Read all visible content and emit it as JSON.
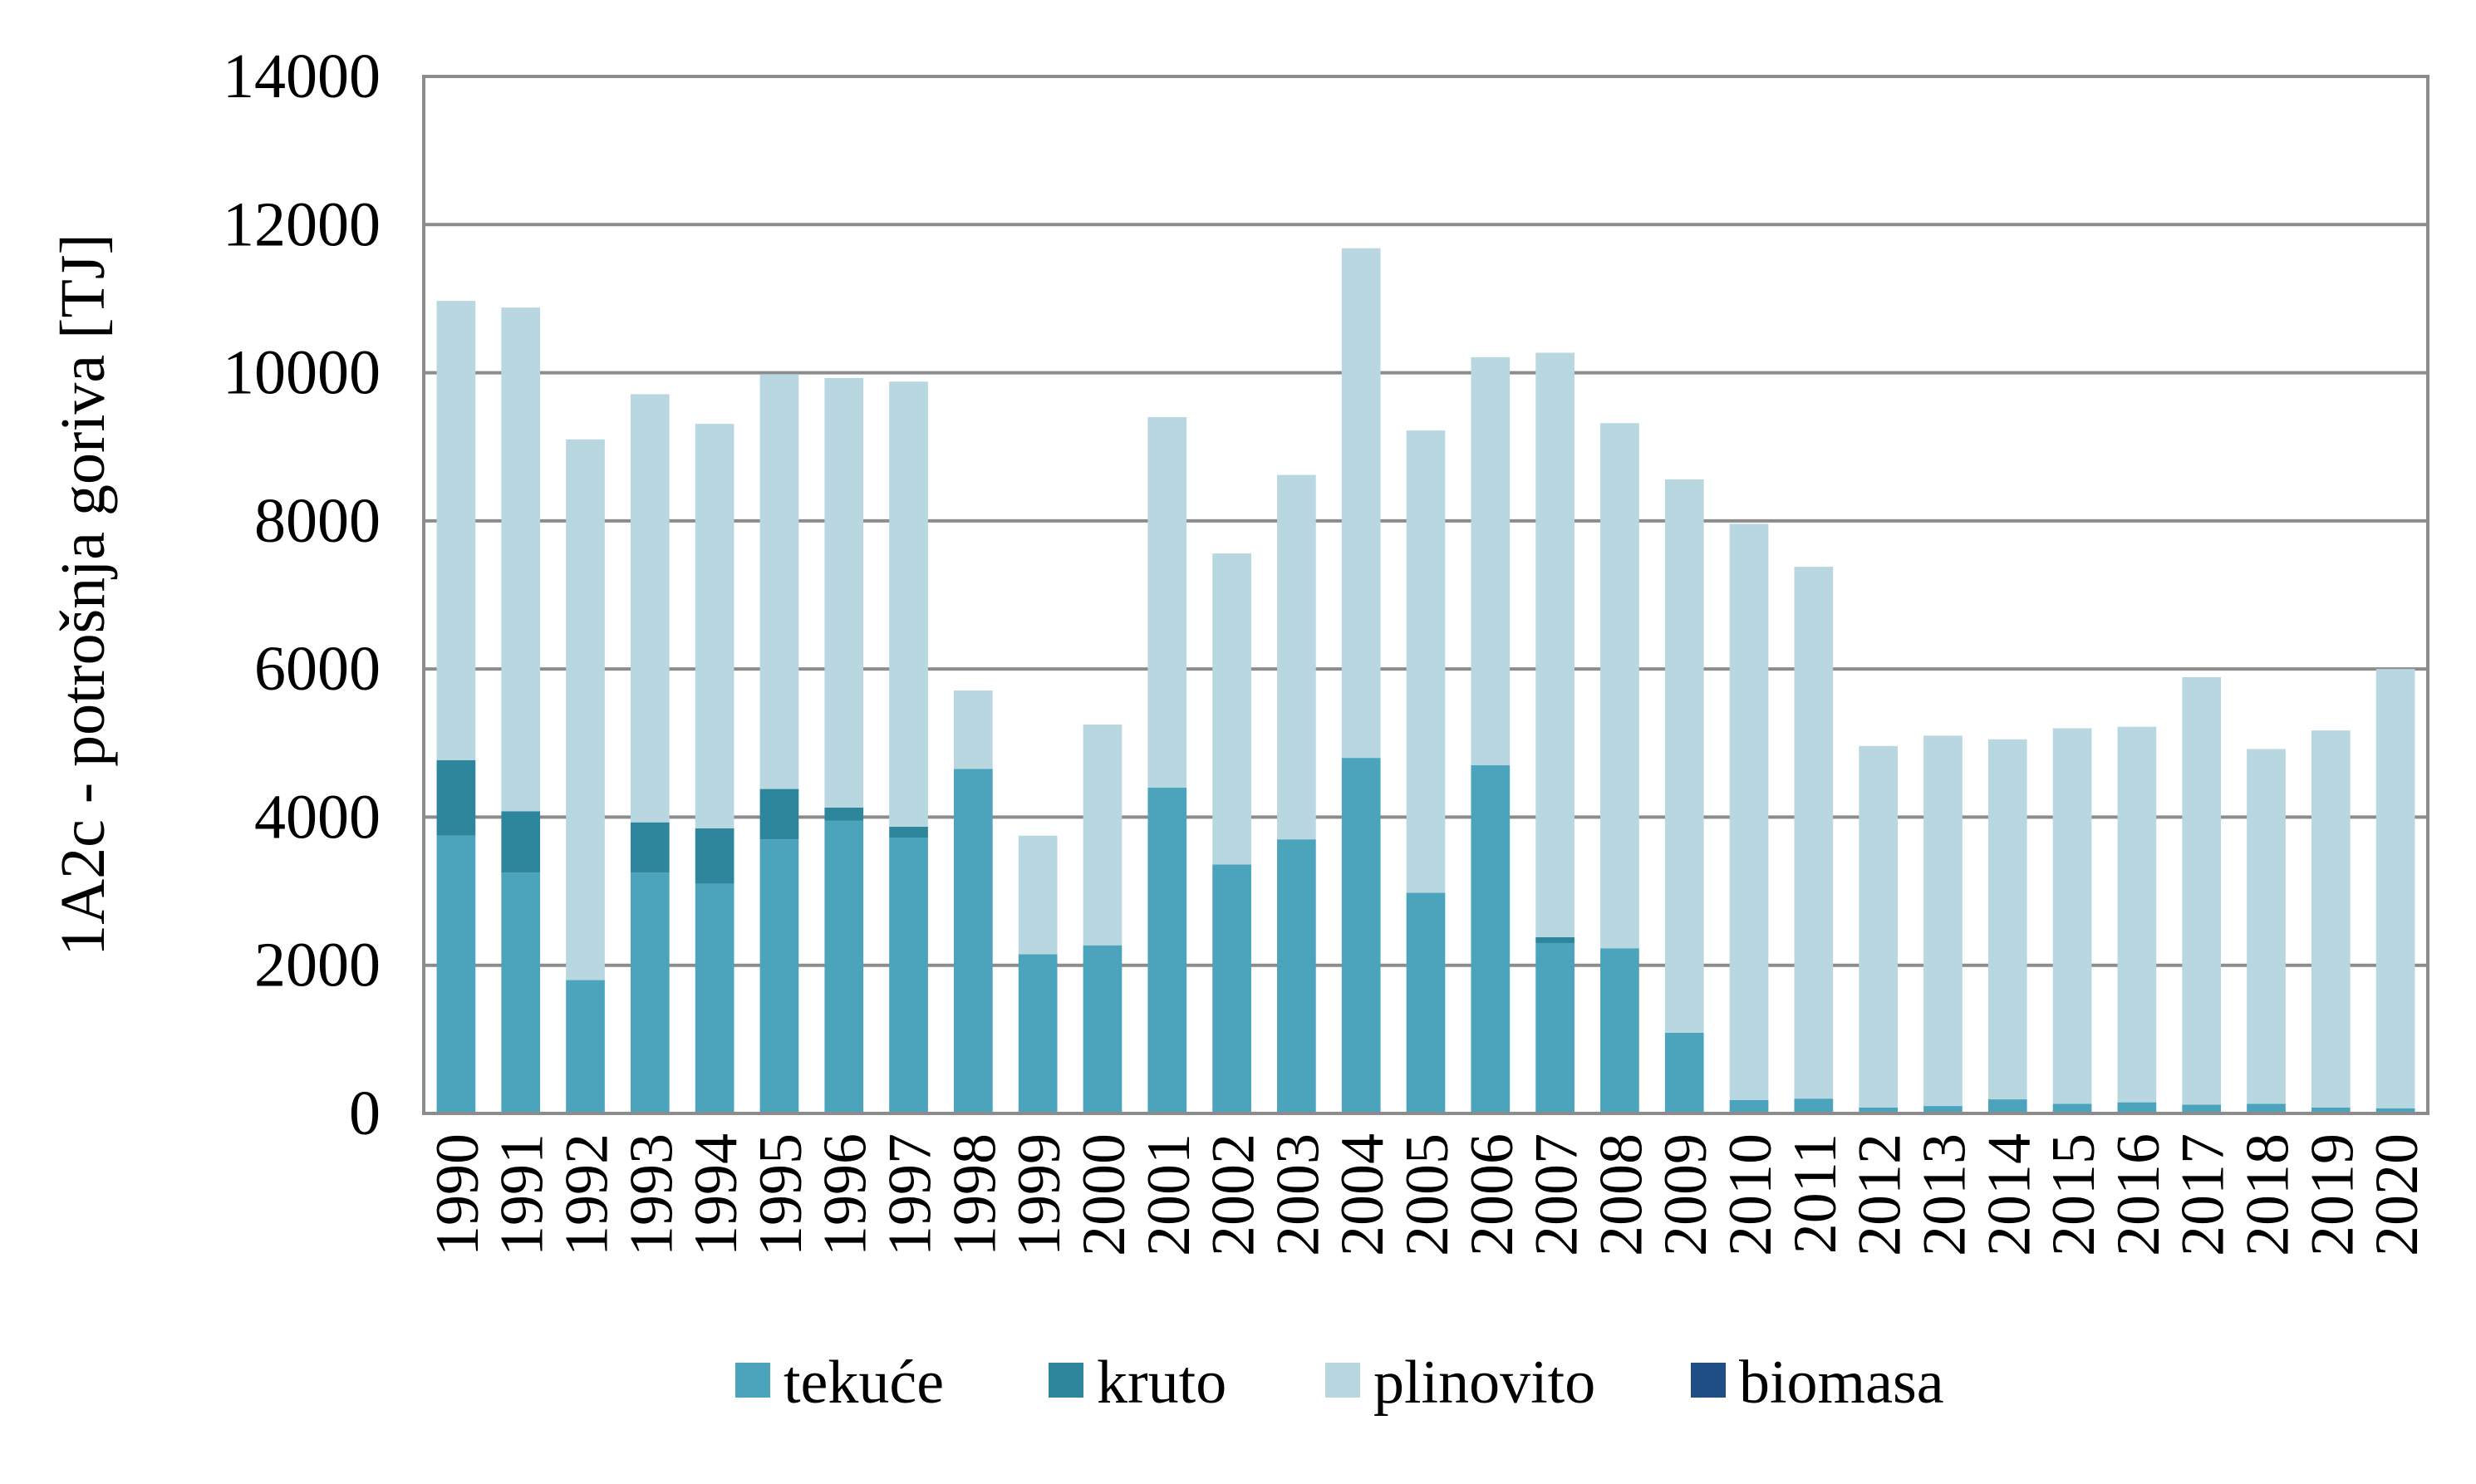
{
  "chart_data": {
    "type": "bar",
    "stacked": true,
    "title": "",
    "xlabel": "",
    "ylabel": "1A2c  - potrošnja goriva [TJ]",
    "ylim": [
      0,
      14000
    ],
    "yticks": [
      0,
      2000,
      4000,
      6000,
      8000,
      10000,
      12000,
      14000
    ],
    "grid": true,
    "legend_position": "bottom",
    "categories": [
      "1990",
      "1991",
      "1992",
      "1993",
      "1994",
      "1995",
      "1996",
      "1997",
      "1998",
      "1999",
      "2000",
      "2001",
      "2002",
      "2003",
      "2004",
      "2005",
      "2006",
      "2007",
      "2008",
      "2009",
      "2010",
      "2011",
      "2012",
      "2013",
      "2014",
      "2015",
      "2016",
      "2017",
      "2018",
      "2019",
      "2020"
    ],
    "series": [
      {
        "name": "tekuće",
        "color": "#4BA3BC",
        "values": [
          3750,
          3250,
          1800,
          3250,
          3100,
          3700,
          3950,
          3720,
          4650,
          2150,
          2270,
          4400,
          3360,
          3700,
          4800,
          2980,
          4700,
          2300,
          2230,
          1090,
          180,
          200,
          80,
          100,
          190,
          130,
          150,
          120,
          130,
          80,
          70
        ]
      },
      {
        "name": "kruto",
        "color": "#2E869D",
        "values": [
          1020,
          830,
          0,
          680,
          750,
          680,
          180,
          150,
          0,
          0,
          0,
          0,
          0,
          0,
          0,
          0,
          0,
          80,
          0,
          0,
          0,
          0,
          0,
          0,
          0,
          0,
          0,
          0,
          0,
          0,
          0
        ]
      },
      {
        "name": "plinovito",
        "color": "#B8D7E0",
        "values": [
          6200,
          6800,
          7300,
          5780,
          5460,
          5600,
          5800,
          6010,
          1060,
          1600,
          2980,
          5000,
          4200,
          4920,
          6880,
          6240,
          5510,
          7890,
          7090,
          7470,
          7780,
          7180,
          4880,
          5000,
          4860,
          5070,
          5070,
          5770,
          4790,
          5090,
          5930
        ]
      },
      {
        "name": "biomasa",
        "color": "#1F4E86",
        "values": [
          0,
          0,
          0,
          0,
          0,
          0,
          0,
          0,
          0,
          0,
          0,
          0,
          0,
          0,
          0,
          0,
          0,
          0,
          0,
          0,
          0,
          0,
          0,
          0,
          0,
          0,
          0,
          0,
          0,
          0,
          0
        ]
      }
    ]
  }
}
